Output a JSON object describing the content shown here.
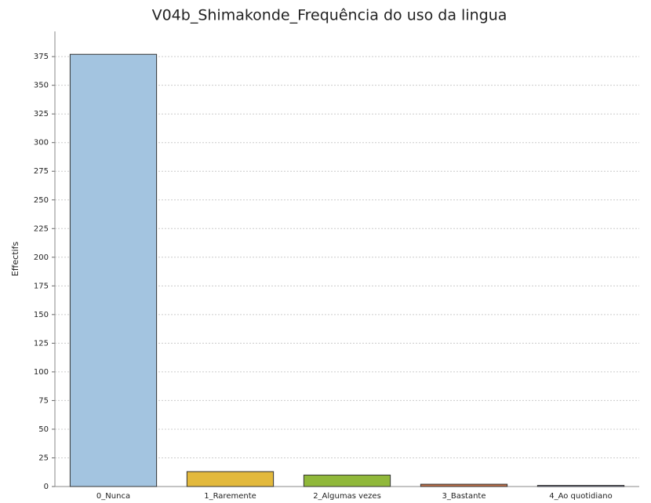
{
  "chart_data": {
    "type": "bar",
    "title": "V04b_Shimakonde_Frequência do uso da lingua",
    "y_label": "Effectifs",
    "categories": [
      "0_Nunca",
      "1_Raremente",
      "2_Algumas vezes",
      "3_Bastante",
      "4_Ao quotidiano"
    ],
    "values": [
      377,
      13,
      10,
      2,
      1
    ],
    "colors": [
      "#a3c4e0",
      "#e3b93c",
      "#90b83a",
      "#c0704a",
      "#8a8fb0"
    ],
    "ylim": [
      0,
      397
    ],
    "yticks": [
      0,
      25,
      50,
      75,
      100,
      125,
      150,
      175,
      200,
      225,
      250,
      275,
      300,
      325,
      350,
      375
    ],
    "grid": true
  }
}
